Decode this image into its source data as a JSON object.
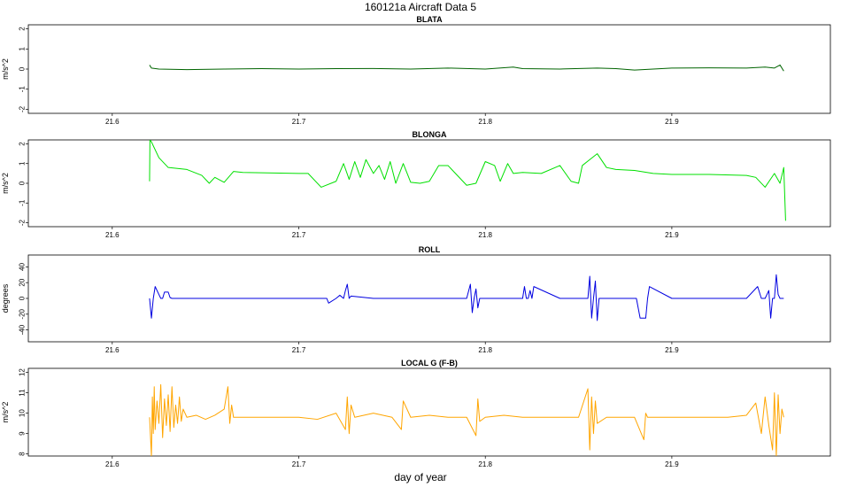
{
  "figure": {
    "title": "160121a   Aircraft Data 5",
    "xlabel": "day of year"
  },
  "chart_data": [
    {
      "type": "line",
      "title": "BLATA",
      "ylabel": "m/s^2",
      "xlim": [
        21.555,
        21.985
      ],
      "ylim": [
        -2.2,
        2.2
      ],
      "xticks": [
        "21.6",
        "21.7",
        "21.8",
        "21.9"
      ],
      "yticks": [
        "-2",
        "-1",
        "0",
        "1",
        "2"
      ],
      "color": "#006400",
      "series": [
        {
          "x": [
            21.62,
            21.621,
            21.625,
            21.64,
            21.66,
            21.68,
            21.7,
            21.72,
            21.74,
            21.76,
            21.78,
            21.8,
            21.815,
            21.82,
            21.84,
            21.86,
            21.87,
            21.88,
            21.9,
            21.92,
            21.94,
            21.95,
            21.955,
            21.958,
            21.96
          ],
          "y": [
            0.2,
            0.05,
            0.0,
            -0.03,
            0.0,
            0.02,
            0.0,
            0.02,
            0.03,
            0.0,
            0.05,
            0.0,
            0.1,
            0.02,
            0.0,
            0.05,
            0.02,
            -0.05,
            0.05,
            0.06,
            0.05,
            0.1,
            0.05,
            0.2,
            -0.1
          ]
        }
      ]
    },
    {
      "type": "line",
      "title": "BLONGA",
      "ylabel": "m/s^2",
      "xlim": [
        21.555,
        21.985
      ],
      "ylim": [
        -2.2,
        2.2
      ],
      "xticks": [
        "21.6",
        "21.7",
        "21.8",
        "21.9"
      ],
      "yticks": [
        "-2",
        "-1",
        "0",
        "1",
        "2"
      ],
      "color": "#00e000",
      "series": [
        {
          "x": [
            21.62,
            21.6202,
            21.621,
            21.625,
            21.63,
            21.64,
            21.648,
            21.652,
            21.655,
            21.66,
            21.665,
            21.67,
            21.7,
            21.705,
            21.712,
            21.72,
            21.724,
            21.727,
            21.73,
            21.733,
            21.736,
            21.74,
            21.743,
            21.746,
            21.749,
            21.752,
            21.756,
            21.76,
            21.765,
            21.77,
            21.775,
            21.78,
            21.79,
            21.795,
            21.8,
            21.805,
            21.808,
            21.812,
            21.815,
            21.82,
            21.83,
            21.84,
            21.846,
            21.85,
            21.852,
            21.856,
            21.86,
            21.865,
            21.87,
            21.88,
            21.89,
            21.9,
            21.92,
            21.94,
            21.945,
            21.95,
            21.955,
            21.958,
            21.96,
            21.961
          ],
          "y": [
            0.1,
            2.2,
            2.1,
            1.3,
            0.8,
            0.7,
            0.4,
            0.0,
            0.3,
            0.05,
            0.6,
            0.55,
            0.5,
            0.5,
            -0.2,
            0.1,
            1.0,
            0.2,
            1.1,
            0.3,
            1.2,
            0.5,
            0.9,
            0.2,
            1.1,
            0.0,
            1.0,
            0.05,
            0.0,
            0.1,
            0.9,
            0.9,
            -0.1,
            0.0,
            1.1,
            0.9,
            0.1,
            1.0,
            0.5,
            0.55,
            0.5,
            0.9,
            0.1,
            0.0,
            0.9,
            1.2,
            1.5,
            0.8,
            0.7,
            0.65,
            0.5,
            0.45,
            0.45,
            0.4,
            0.3,
            -0.2,
            0.5,
            0.0,
            0.8,
            -1.9
          ]
        }
      ]
    },
    {
      "type": "line",
      "title": "ROLL",
      "ylabel": "degrees",
      "xlim": [
        21.555,
        21.985
      ],
      "ylim": [
        -55,
        55
      ],
      "xticks": [
        "21.6",
        "21.7",
        "21.8",
        "21.9"
      ],
      "yticks": [
        "-40",
        "-20",
        "0",
        "20",
        "40"
      ],
      "color": "#0000e0",
      "series": [
        {
          "x": [
            21.62,
            21.621,
            21.622,
            21.623,
            21.625,
            21.626,
            21.627,
            21.628,
            21.63,
            21.631,
            21.632,
            21.65,
            21.7,
            21.715,
            21.716,
            21.72,
            21.722,
            21.724,
            21.725,
            21.726,
            21.727,
            21.728,
            21.74,
            21.77,
            21.79,
            21.792,
            21.793,
            21.794,
            21.795,
            21.796,
            21.797,
            21.8,
            21.81,
            21.82,
            21.821,
            21.822,
            21.823,
            21.824,
            21.825,
            21.826,
            21.84,
            21.85,
            21.855,
            21.856,
            21.857,
            21.858,
            21.859,
            21.86,
            21.861,
            21.865,
            21.88,
            21.881,
            21.883,
            21.884,
            21.885,
            21.886,
            21.887,
            21.888,
            21.9,
            21.94,
            21.946,
            21.948,
            21.95,
            21.952,
            21.953,
            21.954,
            21.955,
            21.956,
            21.957,
            21.958,
            21.96
          ],
          "y": [
            0,
            -25,
            0,
            15,
            5,
            0,
            0,
            8,
            8,
            1,
            0,
            0,
            0,
            0,
            -6,
            0,
            4,
            0,
            10,
            18,
            0,
            3,
            0,
            0,
            0,
            18,
            -18,
            0,
            12,
            -12,
            0,
            0,
            0,
            0,
            15,
            0,
            0,
            10,
            0,
            15,
            0,
            0,
            0,
            28,
            -25,
            0,
            22,
            -28,
            0,
            0,
            0,
            0,
            -25,
            -25,
            -25,
            -25,
            0,
            15,
            0,
            0,
            15,
            0,
            0,
            10,
            -25,
            0,
            0,
            30,
            5,
            0,
            0
          ]
        }
      ]
    },
    {
      "type": "line",
      "title": "LOCAL G (F-B)",
      "ylabel": "m/s^2",
      "xlim": [
        21.555,
        21.985
      ],
      "ylim": [
        7.9,
        12.2
      ],
      "xticks": [
        "21.6",
        "21.7",
        "21.8",
        "21.9"
      ],
      "yticks": [
        "8",
        "9",
        "10",
        "11",
        "12"
      ],
      "color": "#ffa500",
      "series": [
        {
          "x": [
            21.62,
            21.621,
            21.6215,
            21.622,
            21.6225,
            21.623,
            21.624,
            21.625,
            21.626,
            21.627,
            21.628,
            21.629,
            21.63,
            21.631,
            21.632,
            21.633,
            21.634,
            21.635,
            21.636,
            21.637,
            21.638,
            21.64,
            21.645,
            21.65,
            21.655,
            21.66,
            21.662,
            21.663,
            21.664,
            21.665,
            21.67,
            21.68,
            21.69,
            21.7,
            21.71,
            21.72,
            21.725,
            21.726,
            21.727,
            21.728,
            21.73,
            21.74,
            21.75,
            21.755,
            21.756,
            21.76,
            21.77,
            21.78,
            21.79,
            21.795,
            21.796,
            21.797,
            21.8,
            21.81,
            21.82,
            21.83,
            21.84,
            21.85,
            21.855,
            21.856,
            21.857,
            21.858,
            21.859,
            21.86,
            21.865,
            21.87,
            21.88,
            21.885,
            21.886,
            21.887,
            21.89,
            21.9,
            21.91,
            21.92,
            21.93,
            21.94,
            21.945,
            21.948,
            21.95,
            21.952,
            21.954,
            21.955,
            21.956,
            21.957,
            21.958,
            21.959,
            21.96
          ],
          "y": [
            9.8,
            7.9,
            10.8,
            9.0,
            11.3,
            9.2,
            10.6,
            9.5,
            11.4,
            8.8,
            10.7,
            9.4,
            10.9,
            9.1,
            11.3,
            9.3,
            10.4,
            9.5,
            10.8,
            9.6,
            10.2,
            9.8,
            9.9,
            9.7,
            9.9,
            10.2,
            11.3,
            9.5,
            10.4,
            9.8,
            9.8,
            9.8,
            9.8,
            9.8,
            9.7,
            10.0,
            9.2,
            10.8,
            9.0,
            10.4,
            9.8,
            10.0,
            9.8,
            9.2,
            10.6,
            9.8,
            9.9,
            9.8,
            9.8,
            8.9,
            10.7,
            9.6,
            9.8,
            9.9,
            9.8,
            9.8,
            9.8,
            9.8,
            11.2,
            8.2,
            10.8,
            9.0,
            10.6,
            9.5,
            9.8,
            9.8,
            9.8,
            8.7,
            10.0,
            9.8,
            9.8,
            9.8,
            9.8,
            9.8,
            9.8,
            9.9,
            10.5,
            9.0,
            10.8,
            9.4,
            8.2,
            11.0,
            7.9,
            10.9,
            9.0,
            10.2,
            9.8
          ]
        }
      ]
    }
  ]
}
